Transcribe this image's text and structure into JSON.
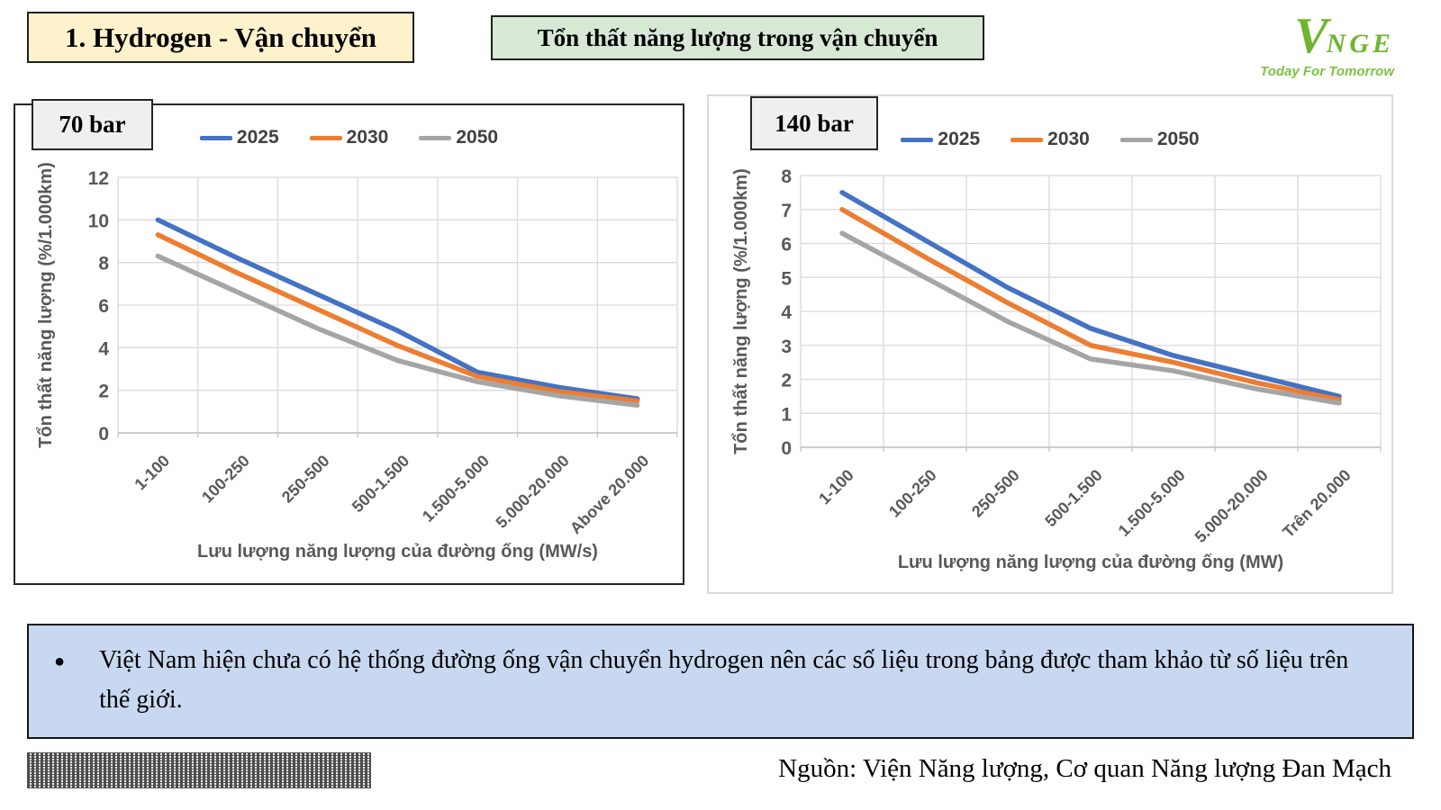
{
  "slide": {
    "title": "1. Hydrogen - Vận chuyển",
    "subtitle": "Tổn thất năng lượng trong vận chuyển",
    "logo": {
      "mark": "V",
      "name": "NGE",
      "tagline": "Today For Tomorrow"
    },
    "note": {
      "bullet": "●",
      "text": "Việt Nam hiện chưa có hệ thống đường ống vận chuyển hydrogen nên các số liệu trong bảng được tham khảo từ số liệu trên thế giới."
    },
    "source": "Nguồn: Viện Năng lượng, Cơ quan Năng lượng Đan Mạch"
  },
  "colors": {
    "series_2025": "#4472C4",
    "series_2030": "#ED7D31",
    "series_2050": "#A5A5A5",
    "axis_text": "#595959",
    "gridline": "#D9D9D9",
    "axis_line": "#BFBFBF",
    "title_bg": "#FDF2CC",
    "subtitle_bg": "#D7E8D5",
    "note_bg": "#C9D8F1",
    "badge_bg": "#EFEFEF",
    "logo_green": "#6FB52E"
  },
  "chart_data": [
    {
      "type": "line",
      "pressure_label": "70 bar",
      "title": "",
      "xlabel": "Lưu lượng năng lượng của đường ống (MW/s)",
      "ylabel": "Tổn thất năng lượng (%/1.000km)",
      "ylim": [
        0,
        12
      ],
      "ytick_step": 2,
      "grid": true,
      "legend_position": "top",
      "categories": [
        "1-100",
        "100-250",
        "250-500",
        "500-1.500",
        "1.500-5.000",
        "5.000-20.000",
        "Above 20.000"
      ],
      "series": [
        {
          "name": "2025",
          "color": "#4472C4",
          "values": [
            10.0,
            8.2,
            6.5,
            4.8,
            2.85,
            2.15,
            1.6
          ]
        },
        {
          "name": "2030",
          "color": "#ED7D31",
          "values": [
            9.3,
            7.5,
            5.8,
            4.1,
            2.65,
            1.95,
            1.5
          ]
        },
        {
          "name": "2050",
          "color": "#A5A5A5",
          "values": [
            8.3,
            6.6,
            4.9,
            3.4,
            2.4,
            1.75,
            1.3
          ]
        }
      ]
    },
    {
      "type": "line",
      "pressure_label": "140 bar",
      "title": "",
      "xlabel": "Lưu lượng năng lượng của đường ống (MW)",
      "ylabel": "Tổn thất năng lượng (%/1.000km)",
      "ylim": [
        0,
        8
      ],
      "ytick_step": 1,
      "grid": true,
      "legend_position": "top",
      "categories": [
        "1-100",
        "100-250",
        "250-500",
        "500-1.500",
        "1.500-5.000",
        "5.000-20.000",
        "Trên 20.000"
      ],
      "series": [
        {
          "name": "2025",
          "color": "#4472C4",
          "values": [
            7.5,
            6.1,
            4.7,
            3.5,
            2.7,
            2.1,
            1.5
          ]
        },
        {
          "name": "2030",
          "color": "#ED7D31",
          "values": [
            7.0,
            5.6,
            4.25,
            3.0,
            2.5,
            1.9,
            1.4
          ]
        },
        {
          "name": "2050",
          "color": "#A5A5A5",
          "values": [
            6.3,
            5.0,
            3.7,
            2.6,
            2.25,
            1.72,
            1.3
          ]
        }
      ]
    }
  ]
}
